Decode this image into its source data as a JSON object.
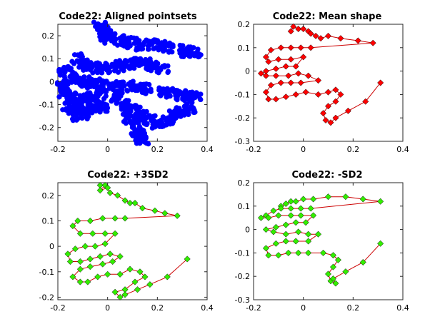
{
  "chart_data": [
    {
      "type": "scatter",
      "title": "Code22: Aligned pointsets",
      "xlim": [
        -0.2,
        0.4
      ],
      "ylim": [
        -0.26,
        0.25
      ],
      "xticks": [
        -0.2,
        0,
        0.2,
        0.4
      ],
      "xtick_labels": [
        "-0.2",
        "0",
        "0.2",
        "0.4"
      ],
      "yticks": [
        -0.2,
        -0.1,
        0,
        0.1,
        0.2
      ],
      "ytick_labels": [
        "-0.2",
        "-0.1",
        "0",
        "0.1",
        "0.2"
      ],
      "grid": false,
      "marker_color": "#0000ff",
      "marker": "filled-circle",
      "cloud_base_shape": [
        [
          -0.03,
          0.24
        ],
        [
          -0.01,
          0.22
        ],
        [
          -0.01,
          0.2
        ],
        [
          0.01,
          0.19
        ],
        [
          0.04,
          0.18
        ],
        [
          0.07,
          0.17
        ],
        [
          0.1,
          0.17
        ],
        [
          0.14,
          0.16
        ],
        [
          0.17,
          0.16
        ],
        [
          0.21,
          0.16
        ],
        [
          0.24,
          0.15
        ],
        [
          0.28,
          0.14
        ],
        [
          0.32,
          0.13
        ],
        [
          0.35,
          0.13
        ],
        [
          -0.12,
          0.1
        ],
        [
          -0.1,
          0.08
        ],
        [
          -0.08,
          0.07
        ],
        [
          -0.05,
          0.06
        ],
        [
          -0.02,
          0.06
        ],
        [
          0.02,
          0.06
        ],
        [
          0.05,
          0.07
        ],
        [
          0.09,
          0.08
        ],
        [
          0.12,
          0.08
        ],
        [
          0.15,
          0.08
        ],
        [
          0.18,
          0.07
        ],
        [
          0.22,
          0.06
        ],
        [
          -0.17,
          0.05
        ],
        [
          -0.15,
          0.02
        ],
        [
          -0.12,
          0.01
        ],
        [
          -0.09,
          0.0
        ],
        [
          -0.06,
          -0.01
        ],
        [
          -0.03,
          -0.01
        ],
        [
          0.0,
          -0.02
        ],
        [
          0.04,
          -0.02
        ],
        [
          0.08,
          -0.02
        ],
        [
          0.12,
          -0.03
        ],
        [
          0.15,
          -0.03
        ],
        [
          -0.18,
          -0.02
        ],
        [
          -0.17,
          -0.05
        ],
        [
          -0.15,
          -0.07
        ],
        [
          -0.12,
          -0.08
        ],
        [
          -0.09,
          -0.08
        ],
        [
          -0.06,
          -0.07
        ],
        [
          -0.03,
          -0.06
        ],
        [
          0.23,
          -0.04
        ],
        [
          0.26,
          -0.05
        ],
        [
          0.29,
          -0.06
        ],
        [
          0.32,
          -0.06
        ],
        [
          0.35,
          -0.07
        ],
        [
          -0.16,
          -0.11
        ],
        [
          -0.14,
          -0.13
        ],
        [
          -0.12,
          -0.15
        ],
        [
          -0.1,
          -0.14
        ],
        [
          -0.08,
          -0.12
        ],
        [
          -0.05,
          -0.11
        ],
        [
          -0.02,
          -0.11
        ],
        [
          0.04,
          -0.07
        ],
        [
          0.06,
          -0.1
        ],
        [
          0.08,
          -0.13
        ],
        [
          0.09,
          -0.16
        ],
        [
          0.11,
          -0.19
        ],
        [
          0.12,
          -0.22
        ],
        [
          0.13,
          -0.24
        ],
        [
          0.14,
          -0.25
        ],
        [
          0.11,
          -0.12
        ],
        [
          0.14,
          -0.15
        ],
        [
          0.17,
          -0.17
        ],
        [
          0.2,
          -0.18
        ],
        [
          0.24,
          -0.17
        ],
        [
          0.27,
          -0.15
        ],
        [
          0.3,
          -0.13
        ],
        [
          0.33,
          -0.12
        ]
      ]
    },
    {
      "type": "line",
      "title": "Code22: Mean shape",
      "xlim": [
        -0.2,
        0.4
      ],
      "ylim": [
        -0.3,
        0.2
      ],
      "xticks": [
        -0.2,
        0,
        0.2,
        0.4
      ],
      "xtick_labels": [
        "-0.2",
        "0",
        "0.2",
        "0.4"
      ],
      "yticks": [
        -0.3,
        -0.2,
        -0.1,
        0,
        0.1,
        0.2
      ],
      "ytick_labels": [
        "-0.3",
        "-0.2",
        "-0.1",
        "0",
        "0.1",
        "0.2"
      ],
      "grid": false,
      "line_color": "#cc0000",
      "marker_color": "#ff0000",
      "marker": "diamond",
      "points": [
        [
          -0.05,
          0.17
        ],
        [
          -0.04,
          0.19
        ],
        [
          -0.02,
          0.18
        ],
        [
          0.0,
          0.18
        ],
        [
          0.02,
          0.17
        ],
        [
          0.03,
          0.16
        ],
        [
          0.05,
          0.15
        ],
        [
          0.07,
          0.14
        ],
        [
          0.1,
          0.15
        ],
        [
          0.15,
          0.14
        ],
        [
          0.22,
          0.13
        ],
        [
          0.28,
          0.12
        ],
        [
          0.03,
          0.1
        ],
        [
          -0.01,
          0.1
        ],
        [
          -0.05,
          0.1
        ],
        [
          -0.09,
          0.1
        ],
        [
          -0.13,
          0.09
        ],
        [
          -0.15,
          0.06
        ],
        [
          -0.14,
          0.04
        ],
        [
          -0.1,
          0.05
        ],
        [
          -0.05,
          0.05
        ],
        [
          0.0,
          0.06
        ],
        [
          -0.03,
          0.02
        ],
        [
          -0.07,
          0.02
        ],
        [
          -0.11,
          0.01
        ],
        [
          -0.15,
          0.0
        ],
        [
          -0.17,
          -0.01
        ],
        [
          -0.15,
          -0.02
        ],
        [
          -0.11,
          -0.02
        ],
        [
          -0.06,
          -0.02
        ],
        [
          -0.02,
          -0.01
        ],
        [
          0.02,
          -0.02
        ],
        [
          0.06,
          -0.04
        ],
        [
          -0.01,
          -0.05
        ],
        [
          -0.05,
          -0.05
        ],
        [
          -0.09,
          -0.05
        ],
        [
          -0.13,
          -0.06
        ],
        [
          -0.15,
          -0.09
        ],
        [
          -0.14,
          -0.12
        ],
        [
          -0.11,
          -0.12
        ],
        [
          -0.07,
          -0.11
        ],
        [
          -0.03,
          -0.1
        ],
        [
          0.01,
          -0.09
        ],
        [
          0.06,
          -0.1
        ],
        [
          0.1,
          -0.09
        ],
        [
          0.13,
          -0.08
        ],
        [
          0.15,
          -0.1
        ],
        [
          0.13,
          -0.13
        ],
        [
          0.1,
          -0.15
        ],
        [
          0.08,
          -0.18
        ],
        [
          0.09,
          -0.21
        ],
        [
          0.11,
          -0.22
        ],
        [
          0.13,
          -0.2
        ],
        [
          0.18,
          -0.17
        ],
        [
          0.25,
          -0.13
        ],
        [
          0.31,
          -0.05
        ]
      ]
    },
    {
      "type": "line",
      "title": "Code22: +3SD2",
      "xlim": [
        -0.2,
        0.4
      ],
      "ylim": [
        -0.21,
        0.25
      ],
      "xticks": [
        -0.2,
        0,
        0.2,
        0.4
      ],
      "xtick_labels": [
        "-0.2",
        "0",
        "0.2",
        "0.4"
      ],
      "yticks": [
        -0.2,
        -0.1,
        0,
        0.1,
        0.2
      ],
      "ytick_labels": [
        "-0.2",
        "-0.1",
        "0",
        "0.1",
        "0.2"
      ],
      "grid": false,
      "line_color": "#cc0000",
      "marker_color": "#33ee00",
      "marker": "diamond",
      "points": [
        [
          -0.03,
          0.24
        ],
        [
          -0.01,
          0.24
        ],
        [
          -0.03,
          0.22
        ],
        [
          0.0,
          0.23
        ],
        [
          0.01,
          0.21
        ],
        [
          0.04,
          0.2
        ],
        [
          0.07,
          0.18
        ],
        [
          0.09,
          0.17
        ],
        [
          0.11,
          0.17
        ],
        [
          0.14,
          0.15
        ],
        [
          0.19,
          0.14
        ],
        [
          0.23,
          0.13
        ],
        [
          0.28,
          0.12
        ],
        [
          0.07,
          0.11
        ],
        [
          0.03,
          0.11
        ],
        [
          -0.02,
          0.11
        ],
        [
          -0.07,
          0.1
        ],
        [
          -0.12,
          0.1
        ],
        [
          -0.14,
          0.08
        ],
        [
          -0.11,
          0.05
        ],
        [
          -0.06,
          0.05
        ],
        [
          -0.01,
          0.05
        ],
        [
          0.03,
          0.05
        ],
        [
          -0.01,
          0.01
        ],
        [
          -0.05,
          0.0
        ],
        [
          -0.09,
          0.0
        ],
        [
          -0.13,
          -0.01
        ],
        [
          -0.16,
          -0.03
        ],
        [
          -0.15,
          -0.06
        ],
        [
          -0.11,
          -0.06
        ],
        [
          -0.07,
          -0.05
        ],
        [
          -0.03,
          -0.04
        ],
        [
          0.01,
          -0.03
        ],
        [
          0.05,
          -0.04
        ],
        [
          0.02,
          -0.06
        ],
        [
          -0.02,
          -0.07
        ],
        [
          -0.07,
          -0.08
        ],
        [
          -0.11,
          -0.09
        ],
        [
          -0.14,
          -0.12
        ],
        [
          -0.11,
          -0.14
        ],
        [
          -0.08,
          -0.14
        ],
        [
          -0.04,
          -0.12
        ],
        [
          0.0,
          -0.11
        ],
        [
          0.05,
          -0.11
        ],
        [
          0.09,
          -0.09
        ],
        [
          0.13,
          -0.1
        ],
        [
          0.15,
          -0.12
        ],
        [
          0.11,
          -0.14
        ],
        [
          0.07,
          -0.17
        ],
        [
          0.03,
          -0.18
        ],
        [
          0.05,
          -0.2
        ],
        [
          0.07,
          -0.19
        ],
        [
          0.12,
          -0.17
        ],
        [
          0.17,
          -0.15
        ],
        [
          0.24,
          -0.12
        ],
        [
          0.32,
          -0.05
        ]
      ]
    },
    {
      "type": "line",
      "title": "Code22: -SD2",
      "xlim": [
        -0.2,
        0.4
      ],
      "ylim": [
        -0.3,
        0.2
      ],
      "xticks": [
        -0.2,
        0,
        0.2,
        0.4
      ],
      "xtick_labels": [
        "-0.2",
        "0",
        "0.2",
        "0.4"
      ],
      "yticks": [
        -0.3,
        -0.2,
        -0.1,
        0,
        0.1,
        0.2
      ],
      "ytick_labels": [
        "-0.3",
        "-0.2",
        "-0.1",
        "0",
        "0.1",
        "0.2"
      ],
      "grid": false,
      "line_color": "#cc0000",
      "marker_color": "#33ee00",
      "marker": "diamond",
      "points": [
        [
          -0.09,
          0.1
        ],
        [
          -0.07,
          0.11
        ],
        [
          -0.05,
          0.12
        ],
        [
          -0.03,
          0.12
        ],
        [
          0.0,
          0.13
        ],
        [
          0.04,
          0.13
        ],
        [
          0.1,
          0.14
        ],
        [
          0.17,
          0.14
        ],
        [
          0.24,
          0.13
        ],
        [
          0.31,
          0.12
        ],
        [
          0.03,
          0.09
        ],
        [
          -0.01,
          0.09
        ],
        [
          -0.05,
          0.09
        ],
        [
          -0.09,
          0.09
        ],
        [
          -0.12,
          0.08
        ],
        [
          -0.15,
          0.06
        ],
        [
          -0.17,
          0.05
        ],
        [
          -0.14,
          0.05
        ],
        [
          -0.1,
          0.06
        ],
        [
          -0.05,
          0.06
        ],
        [
          -0.01,
          0.06
        ],
        [
          0.04,
          0.06
        ],
        [
          0.01,
          0.03
        ],
        [
          -0.03,
          0.03
        ],
        [
          -0.07,
          0.02
        ],
        [
          -0.11,
          0.01
        ],
        [
          -0.15,
          0.0
        ],
        [
          -0.12,
          -0.01
        ],
        [
          -0.07,
          -0.02
        ],
        [
          -0.02,
          -0.01
        ],
        [
          0.02,
          -0.02
        ],
        [
          0.06,
          -0.02
        ],
        [
          0.02,
          -0.05
        ],
        [
          -0.03,
          -0.05
        ],
        [
          -0.07,
          -0.05
        ],
        [
          -0.11,
          -0.06
        ],
        [
          -0.15,
          -0.08
        ],
        [
          -0.14,
          -0.11
        ],
        [
          -0.1,
          -0.11
        ],
        [
          -0.06,
          -0.1
        ],
        [
          -0.02,
          -0.1
        ],
        [
          0.02,
          -0.1
        ],
        [
          0.08,
          -0.1
        ],
        [
          0.12,
          -0.11
        ],
        [
          0.14,
          -0.13
        ],
        [
          0.12,
          -0.16
        ],
        [
          0.1,
          -0.19
        ],
        [
          0.11,
          -0.22
        ],
        [
          0.13,
          -0.23
        ],
        [
          0.12,
          -0.21
        ],
        [
          0.17,
          -0.18
        ],
        [
          0.24,
          -0.14
        ],
        [
          0.31,
          -0.06
        ]
      ]
    }
  ]
}
